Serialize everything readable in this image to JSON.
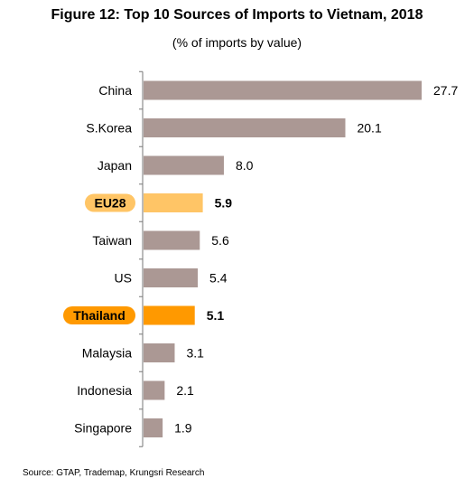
{
  "title": "Figure 12: Top 10 Sources of Imports to Vietnam, 2018",
  "subtitle": "(% of imports by value)",
  "source": "Source: GTAP, Trademap, Krungsri Research",
  "colors": {
    "default_bar": "#ab9894",
    "eu28": "#ffc566",
    "thailand": "#ff9900",
    "axis": "#777777"
  },
  "chart_data": {
    "type": "bar",
    "orientation": "horizontal",
    "title": "Figure 12: Top 10 Sources of Imports to Vietnam, 2018",
    "subtitle": "(% of imports by value)",
    "categories": [
      "China",
      "S.Korea",
      "Japan",
      "EU28",
      "Taiwan",
      "US",
      "Thailand",
      "Malaysia",
      "Indonesia",
      "Singapore"
    ],
    "values": [
      27.7,
      20.1,
      8.0,
      5.9,
      5.6,
      5.4,
      5.1,
      3.1,
      2.1,
      1.9
    ],
    "value_labels": [
      "27.7",
      "20.1",
      "8.0",
      "5.9",
      "5.6",
      "5.4",
      "5.1",
      "3.1",
      "2.1",
      "1.9"
    ],
    "highlighted": [
      "EU28",
      "Thailand"
    ],
    "xlim": [
      0,
      27.7
    ],
    "grid": false,
    "xlabel": "",
    "ylabel": ""
  }
}
